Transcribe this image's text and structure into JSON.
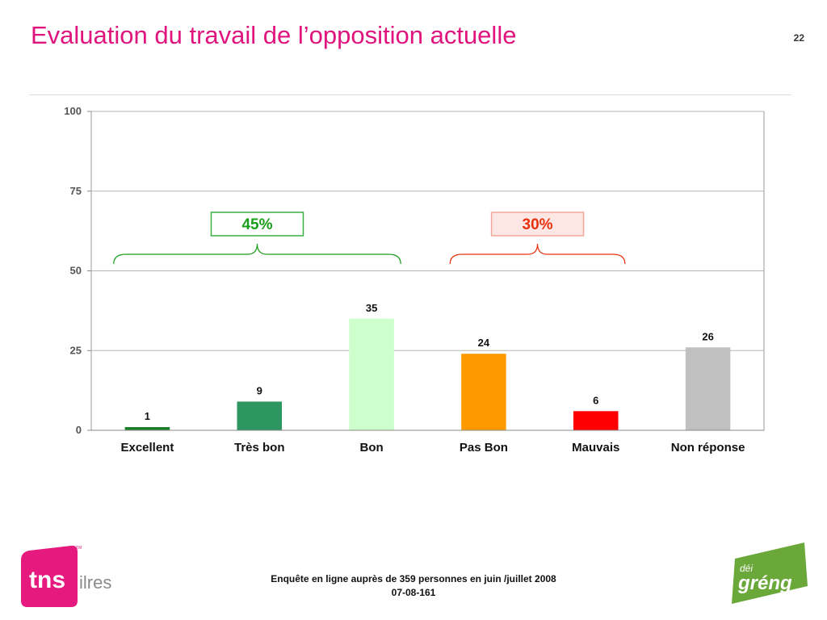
{
  "slide": {
    "title": "Evaluation du travail de l’opposition actuelle",
    "page_number": "22"
  },
  "chart_data": {
    "type": "bar",
    "title": "",
    "xlabel": "",
    "ylabel": "",
    "ylim": [
      0,
      100
    ],
    "yticks": [
      0,
      25,
      50,
      75,
      100
    ],
    "grid": true,
    "categories": [
      "Excellent",
      "Très bon",
      "Bon",
      "Pas Bon",
      "Mauvais",
      "Non réponse"
    ],
    "values": [
      1,
      9,
      35,
      24,
      6,
      26
    ],
    "colors": [
      "#1b7f2a",
      "#2e9661",
      "#ccffcc",
      "#ff9900",
      "#ff0000",
      "#c0c0c0"
    ],
    "groups": [
      {
        "label": "45%",
        "span": [
          "Excellent",
          "Bon"
        ],
        "color": "#1a9e1a",
        "fill": "#ffffff",
        "border": "#3cb043"
      },
      {
        "label": "30%",
        "span": [
          "Pas Bon",
          "Mauvais"
        ],
        "color": "#e8300d",
        "fill": "#fde7e4",
        "border": "#f2a79b"
      }
    ]
  },
  "footer": {
    "line1": "Enquête en ligne auprès de 359 personnes en juin /juillet 2008",
    "line2": "07-08-161"
  },
  "logos": {
    "tns_text": "tns",
    "tns_suffix": "ilres",
    "tns_tm": "TM",
    "tns_color": "#e6197e",
    "greng_top": "déi",
    "greng_main": "gréng",
    "greng_color": "#6aa83a"
  }
}
